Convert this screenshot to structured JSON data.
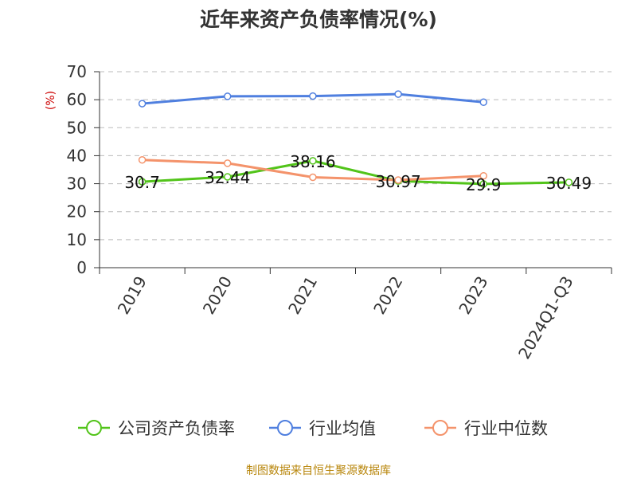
{
  "chart_data": {
    "type": "line",
    "title": "近年来资产负债率情况(%)",
    "ylabel": "(%)",
    "xlabel": "",
    "ylim": [
      0,
      70
    ],
    "yticks": [
      0,
      10,
      20,
      30,
      40,
      50,
      60,
      70
    ],
    "grid": true,
    "legend_position": "bottom",
    "categories": [
      "2019",
      "2020",
      "2021",
      "2022",
      "2023",
      "2024Q1-Q3"
    ],
    "series": [
      {
        "name": "公司资产负债率",
        "color": "#52c41a",
        "values": [
          30.7,
          32.44,
          38.16,
          30.97,
          29.9,
          30.49
        ],
        "labels": [
          "30.7",
          "32.44",
          "38.16",
          "30.97",
          "29.9",
          "30.49"
        ]
      },
      {
        "name": "行业均值",
        "color": "#4f7fdf",
        "values": [
          58.6,
          61.2,
          61.3,
          62.0,
          59.1,
          null
        ]
      },
      {
        "name": "行业中位数",
        "color": "#f4936b",
        "values": [
          38.5,
          37.3,
          32.3,
          31.3,
          32.8,
          null
        ]
      }
    ]
  },
  "source_text": "制图数据来自恒生聚源数据库"
}
